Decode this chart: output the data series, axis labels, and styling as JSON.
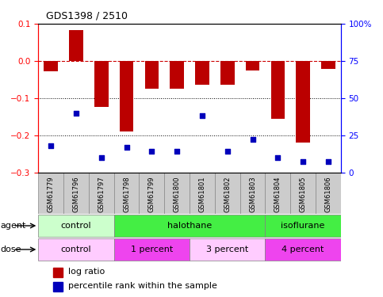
{
  "title": "GDS1398 / 2510",
  "samples": [
    "GSM61779",
    "GSM61796",
    "GSM61797",
    "GSM61798",
    "GSM61799",
    "GSM61800",
    "GSM61801",
    "GSM61802",
    "GSM61803",
    "GSM61804",
    "GSM61805",
    "GSM61806"
  ],
  "log_ratio": [
    -0.028,
    0.082,
    -0.125,
    -0.19,
    -0.075,
    -0.075,
    -0.065,
    -0.065,
    -0.025,
    -0.155,
    -0.22,
    -0.022
  ],
  "percentile_rank": [
    18,
    40,
    10,
    17,
    14,
    14,
    38,
    14,
    22,
    10,
    7,
    7
  ],
  "ylim_left": [
    -0.3,
    0.1
  ],
  "ylim_right": [
    0,
    100
  ],
  "bar_color": "#bb0000",
  "scatter_color": "#0000bb",
  "agent_groups": [
    {
      "label": "control",
      "start": 0,
      "end": 3,
      "color": "#ccffcc"
    },
    {
      "label": "halothane",
      "start": 3,
      "end": 9,
      "color": "#44ee44"
    },
    {
      "label": "isoflurane",
      "start": 9,
      "end": 12,
      "color": "#44ee44"
    }
  ],
  "dose_groups": [
    {
      "label": "control",
      "start": 0,
      "end": 3,
      "color": "#ffccff"
    },
    {
      "label": "1 percent",
      "start": 3,
      "end": 6,
      "color": "#ee44ee"
    },
    {
      "label": "3 percent",
      "start": 6,
      "end": 9,
      "color": "#ffccff"
    },
    {
      "label": "4 percent",
      "start": 9,
      "end": 12,
      "color": "#ee44ee"
    }
  ],
  "hline_color": "#cc0000",
  "dotted_color": "#000000",
  "legend_entries": [
    "log ratio",
    "percentile rank within the sample"
  ],
  "legend_colors": [
    "#bb0000",
    "#0000bb"
  ],
  "left_yticks": [
    -0.3,
    -0.2,
    -0.1,
    0,
    0.1
  ],
  "right_yticks": [
    0,
    25,
    50,
    75,
    100
  ],
  "right_yticklabels": [
    "0",
    "25",
    "50",
    "75",
    "100%"
  ],
  "sample_box_color": "#cccccc",
  "sample_box_edge": "#888888"
}
